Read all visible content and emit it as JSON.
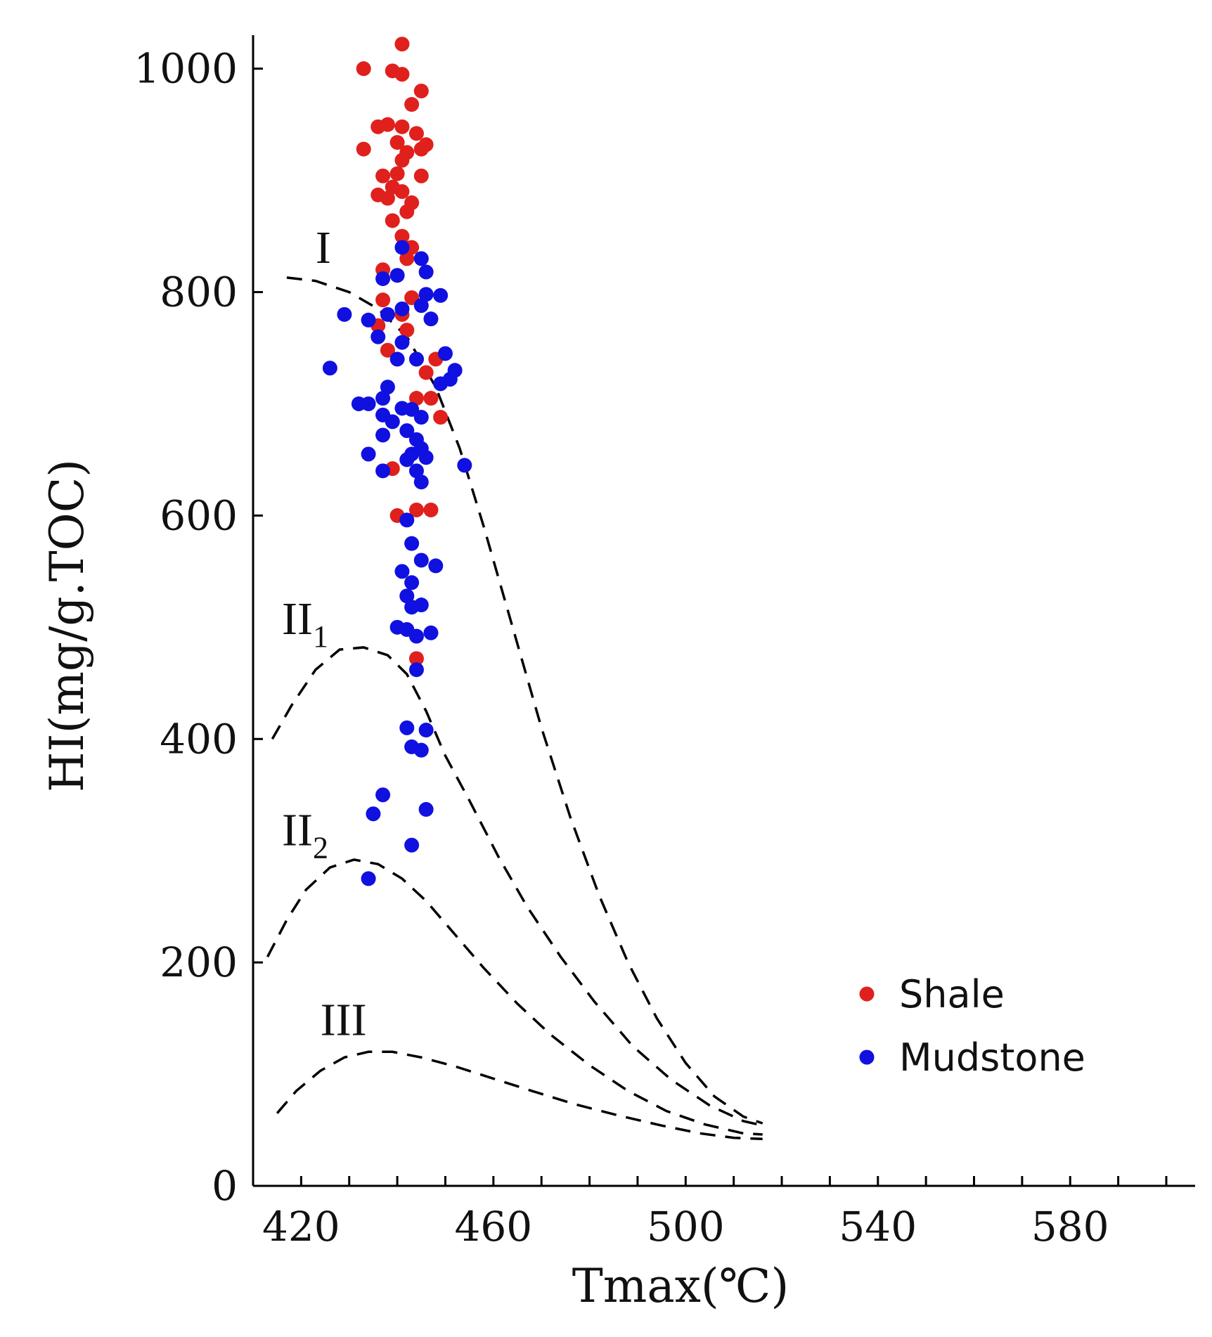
{
  "chart_data": {
    "type": "scatter",
    "title": "",
    "xlabel": "Tmax(℃)",
    "ylabel": "HI(mg/g.TOC)",
    "xlim": [
      410,
      606
    ],
    "ylim": [
      0,
      1030
    ],
    "xticks": [
      420,
      460,
      500,
      540,
      580
    ],
    "yticks": [
      0,
      200,
      400,
      600,
      800,
      1000
    ],
    "grid": false,
    "legend_position": "bottom-right",
    "colors": {
      "Shale": "#e0201c",
      "Mudstone": "#1010e0"
    },
    "series": [
      {
        "name": "Shale",
        "points": [
          [
            441,
            1022
          ],
          [
            433,
            1000
          ],
          [
            439,
            998
          ],
          [
            441,
            995
          ],
          [
            445,
            980
          ],
          [
            443,
            968
          ],
          [
            438,
            950
          ],
          [
            441,
            948
          ],
          [
            436,
            948
          ],
          [
            444,
            942
          ],
          [
            440,
            934
          ],
          [
            446,
            932
          ],
          [
            445,
            928
          ],
          [
            433,
            928
          ],
          [
            442,
            925
          ],
          [
            441,
            918
          ],
          [
            440,
            906
          ],
          [
            437,
            904
          ],
          [
            445,
            904
          ],
          [
            439,
            894
          ],
          [
            441,
            890
          ],
          [
            436,
            887
          ],
          [
            438,
            884
          ],
          [
            443,
            880
          ],
          [
            442,
            872
          ],
          [
            439,
            864
          ],
          [
            441,
            850
          ],
          [
            443,
            840
          ],
          [
            442,
            830
          ],
          [
            437,
            820
          ],
          [
            443,
            795
          ],
          [
            437,
            793
          ],
          [
            441,
            780
          ],
          [
            436,
            770
          ],
          [
            442,
            766
          ],
          [
            438,
            748
          ],
          [
            444,
            740
          ],
          [
            448,
            740
          ],
          [
            446,
            728
          ],
          [
            444,
            705
          ],
          [
            447,
            705
          ],
          [
            449,
            688
          ],
          [
            439,
            642
          ],
          [
            444,
            605
          ],
          [
            447,
            605
          ],
          [
            440,
            600
          ],
          [
            444,
            472
          ]
        ]
      },
      {
        "name": "Mudstone",
        "points": [
          [
            441,
            840
          ],
          [
            445,
            830
          ],
          [
            446,
            818
          ],
          [
            440,
            815
          ],
          [
            437,
            812
          ],
          [
            446,
            798
          ],
          [
            449,
            797
          ],
          [
            429,
            780
          ],
          [
            438,
            780
          ],
          [
            441,
            785
          ],
          [
            445,
            788
          ],
          [
            434,
            775
          ],
          [
            447,
            776
          ],
          [
            436,
            760
          ],
          [
            441,
            755
          ],
          [
            440,
            740
          ],
          [
            444,
            740
          ],
          [
            450,
            745
          ],
          [
            452,
            730
          ],
          [
            426,
            732
          ],
          [
            451,
            722
          ],
          [
            449,
            718
          ],
          [
            438,
            715
          ],
          [
            437,
            705
          ],
          [
            432,
            700
          ],
          [
            434,
            700
          ],
          [
            441,
            696
          ],
          [
            443,
            695
          ],
          [
            437,
            690
          ],
          [
            445,
            688
          ],
          [
            439,
            684
          ],
          [
            442,
            676
          ],
          [
            437,
            672
          ],
          [
            444,
            668
          ],
          [
            445,
            660
          ],
          [
            443,
            655
          ],
          [
            434,
            655
          ],
          [
            446,
            652
          ],
          [
            442,
            650
          ],
          [
            444,
            640
          ],
          [
            437,
            640
          ],
          [
            454,
            645
          ],
          [
            445,
            630
          ],
          [
            442,
            596
          ],
          [
            443,
            575
          ],
          [
            445,
            560
          ],
          [
            448,
            555
          ],
          [
            441,
            550
          ],
          [
            443,
            540
          ],
          [
            442,
            528
          ],
          [
            445,
            520
          ],
          [
            443,
            518
          ],
          [
            440,
            500
          ],
          [
            442,
            498
          ],
          [
            447,
            495
          ],
          [
            444,
            492
          ],
          [
            444,
            462
          ],
          [
            442,
            410
          ],
          [
            446,
            408
          ],
          [
            443,
            393
          ],
          [
            445,
            390
          ],
          [
            437,
            350
          ],
          [
            446,
            337
          ],
          [
            435,
            333
          ],
          [
            443,
            305
          ],
          [
            434,
            275
          ]
        ]
      }
    ],
    "curves": [
      {
        "name": "I",
        "label": "I",
        "subscript": "",
        "points": [
          [
            417,
            813
          ],
          [
            423,
            810
          ],
          [
            430,
            800
          ],
          [
            436,
            785
          ],
          [
            442,
            760
          ],
          [
            448,
            715
          ],
          [
            453,
            660
          ],
          [
            458,
            590
          ],
          [
            464,
            500
          ],
          [
            470,
            410
          ],
          [
            476,
            330
          ],
          [
            482,
            260
          ],
          [
            488,
            200
          ],
          [
            494,
            150
          ],
          [
            500,
            110
          ],
          [
            506,
            80
          ],
          [
            512,
            62
          ],
          [
            516,
            56
          ]
        ]
      },
      {
        "name": "II1",
        "label": "II",
        "subscript": "1",
        "points": [
          [
            414,
            400
          ],
          [
            418,
            430
          ],
          [
            423,
            462
          ],
          [
            428,
            480
          ],
          [
            433,
            482
          ],
          [
            438,
            475
          ],
          [
            442,
            458
          ],
          [
            446,
            425
          ],
          [
            450,
            385
          ],
          [
            455,
            345
          ],
          [
            461,
            295
          ],
          [
            467,
            250
          ],
          [
            474,
            205
          ],
          [
            481,
            165
          ],
          [
            489,
            125
          ],
          [
            497,
            95
          ],
          [
            505,
            72
          ],
          [
            512,
            58
          ],
          [
            516,
            54
          ]
        ]
      },
      {
        "name": "II2",
        "label": "II",
        "subscript": "2",
        "points": [
          [
            413,
            205
          ],
          [
            417,
            238
          ],
          [
            421,
            265
          ],
          [
            426,
            285
          ],
          [
            431,
            292
          ],
          [
            436,
            288
          ],
          [
            441,
            275
          ],
          [
            446,
            255
          ],
          [
            452,
            225
          ],
          [
            458,
            195
          ],
          [
            465,
            163
          ],
          [
            472,
            135
          ],
          [
            480,
            108
          ],
          [
            488,
            85
          ],
          [
            496,
            67
          ],
          [
            504,
            55
          ],
          [
            512,
            47
          ],
          [
            516,
            46
          ]
        ]
      },
      {
        "name": "III",
        "label": "III",
        "subscript": "",
        "points": [
          [
            415,
            65
          ],
          [
            419,
            85
          ],
          [
            424,
            103
          ],
          [
            429,
            115
          ],
          [
            434,
            120
          ],
          [
            439,
            120
          ],
          [
            445,
            115
          ],
          [
            452,
            107
          ],
          [
            460,
            96
          ],
          [
            468,
            85
          ],
          [
            477,
            73
          ],
          [
            486,
            63
          ],
          [
            495,
            54
          ],
          [
            503,
            47
          ],
          [
            510,
            43
          ],
          [
            516,
            42
          ]
        ]
      }
    ],
    "curve_label_anchor": {
      "I": [
        423,
        826
      ],
      "II1": [
        416,
        494
      ],
      "II2": [
        416,
        305
      ],
      "III": [
        424,
        135
      ]
    },
    "legend": [
      {
        "label": "Shale",
        "color": "#e0201c"
      },
      {
        "label": "Mudstone",
        "color": "#1010e0"
      }
    ]
  }
}
